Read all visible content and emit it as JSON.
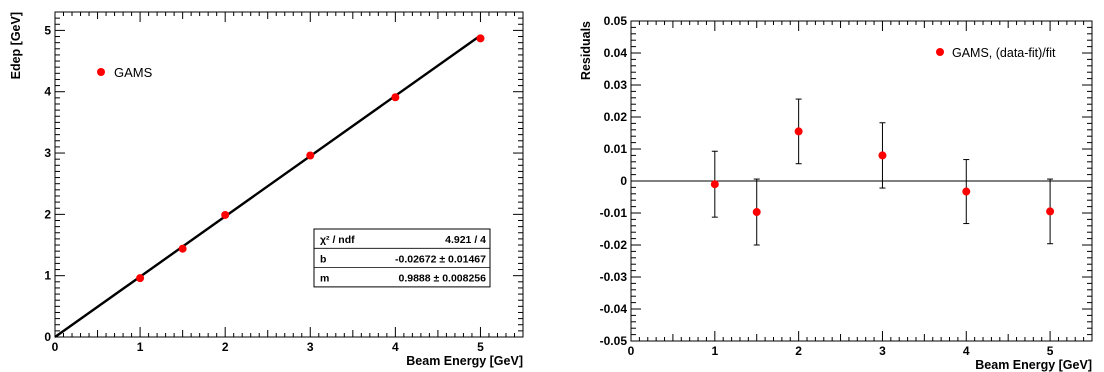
{
  "chart_data": [
    {
      "type": "scatter",
      "title": "",
      "xlabel": "Beam Energy [GeV]",
      "ylabel": "Edep [GeV]",
      "xlim": [
        0,
        5.5
      ],
      "ylim": [
        0,
        5.3
      ],
      "xticks": [
        "0",
        "1",
        "2",
        "3",
        "4",
        "5"
      ],
      "yticks": [
        "0",
        "1",
        "2",
        "3",
        "4",
        "5"
      ],
      "grid": false,
      "legend": "top-left",
      "series": [
        {
          "name": "GAMS",
          "color": "#ff0000",
          "x": [
            1,
            1.5,
            2,
            3,
            4,
            5
          ],
          "y": [
            0.96,
            1.44,
            1.99,
            2.96,
            3.91,
            4.87
          ]
        }
      ],
      "fit_line": {
        "color": "#000000",
        "x": [
          0,
          5
        ],
        "y": [
          -0.02672,
          4.91728
        ]
      },
      "fit_box": [
        {
          "label": "χ² / ndf",
          "value": "4.921 / 4"
        },
        {
          "label": "b",
          "value": "-0.02672 ± 0.01467"
        },
        {
          "label": "m",
          "value": "0.9888 ± 0.008256"
        }
      ]
    },
    {
      "type": "scatter",
      "title": "",
      "xlabel": "Beam Energy [GeV]",
      "ylabel": "Residuals",
      "xlim": [
        0,
        5.5
      ],
      "ylim": [
        -0.05,
        0.05
      ],
      "xticks": [
        "0",
        "1",
        "2",
        "3",
        "4",
        "5"
      ],
      "yticks": [
        "-0.05",
        "-0.04",
        "-0.03",
        "-0.02",
        "-0.01",
        "0",
        "0.01",
        "0.02",
        "0.03",
        "0.04",
        "0.05"
      ],
      "grid": false,
      "legend": "top-right",
      "series": [
        {
          "name": "GAMS, (data-fit)/fit",
          "color": "#ff0000",
          "x": [
            1,
            1.5,
            2,
            3,
            4,
            5
          ],
          "y": [
            -0.001,
            -0.0097,
            0.0155,
            0.008,
            -0.0033,
            -0.0095
          ],
          "yerr": [
            0.0103,
            0.0103,
            0.0101,
            0.0102,
            0.01,
            0.0101
          ]
        }
      ],
      "zero_line": 0
    }
  ]
}
